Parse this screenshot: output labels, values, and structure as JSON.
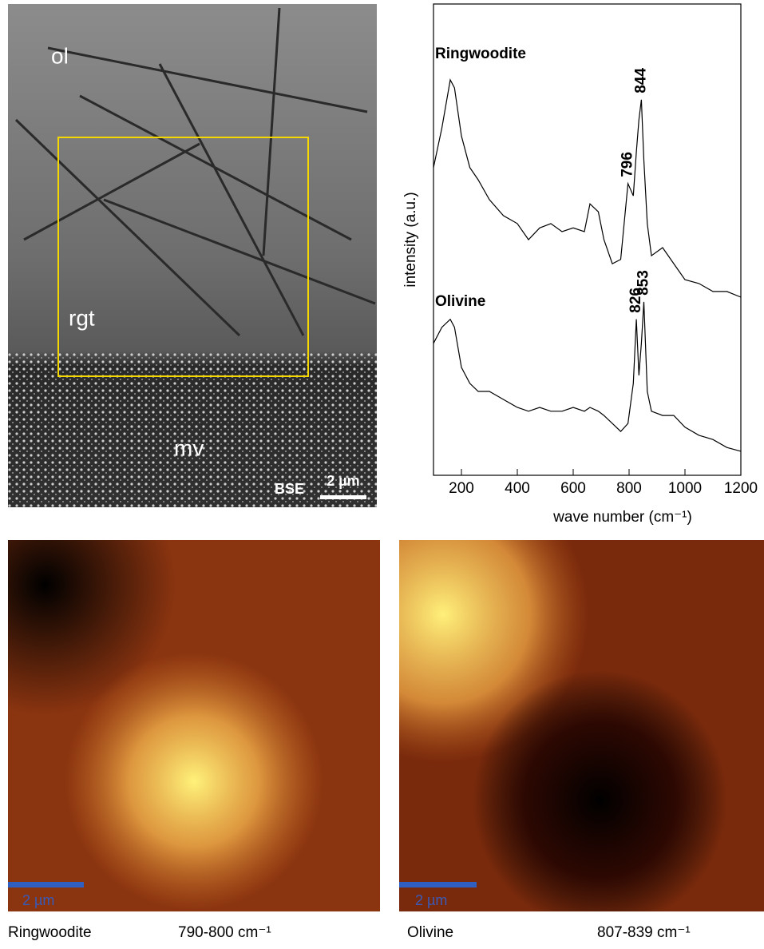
{
  "bse_image": {
    "labels": [
      "ol",
      "rgt",
      "mv"
    ],
    "mode": "BSE",
    "scale_label": "2 µm"
  },
  "chart_data": {
    "type": "line",
    "x_label": "wave number (cm⁻¹)",
    "y_label": "intensity (a.u.)",
    "x": [
      100,
      130,
      160,
      175,
      200,
      230,
      260,
      300,
      350,
      400,
      440,
      480,
      520,
      560,
      600,
      640,
      660,
      690,
      710,
      740,
      770,
      796,
      815,
      826,
      835,
      844,
      853,
      865,
      880,
      920,
      960,
      1000,
      1050,
      1100,
      1150,
      1200
    ],
    "series": [
      {
        "name": "Ringwoodite",
        "color": "#000000",
        "peaks": [
          796,
          844
        ],
        "values": [
          65.3,
          73.7,
          83.9,
          82.2,
          72.0,
          65.3,
          62.7,
          58.5,
          55.1,
          53.4,
          50.0,
          52.5,
          53.4,
          51.7,
          52.5,
          51.7,
          57.6,
          55.9,
          50.0,
          44.9,
          45.8,
          61.9,
          59.3,
          68.6,
          75.4,
          79.7,
          66.9,
          53.4,
          46.6,
          48.3,
          44.9,
          41.5,
          40.7,
          39.0,
          39.0,
          37.8
        ]
      },
      {
        "name": "Olivine",
        "color": "#000000",
        "peaks": [
          826,
          853
        ],
        "values": [
          28.0,
          31.4,
          33.1,
          31.4,
          22.9,
          19.5,
          17.8,
          17.8,
          16.1,
          14.4,
          13.6,
          14.4,
          13.6,
          13.6,
          14.4,
          13.6,
          14.4,
          13.6,
          12.7,
          11.0,
          9.3,
          11.0,
          19.5,
          33.1,
          21.2,
          28.0,
          36.8,
          17.8,
          13.6,
          12.7,
          12.7,
          10.2,
          8.5,
          7.6,
          5.9,
          5.1
        ]
      }
    ],
    "xlim": [
      100,
      1200
    ],
    "xticks": [
      200,
      400,
      600,
      800,
      1000,
      1200
    ],
    "ylim": [
      0,
      100
    ]
  },
  "maps": [
    {
      "name": "Ringwoodite",
      "range": "790-800 cm⁻¹",
      "scale_label": "2 µm"
    },
    {
      "name": "Olivine",
      "range": "807-839 cm⁻¹",
      "scale_label": "2 µm"
    }
  ]
}
